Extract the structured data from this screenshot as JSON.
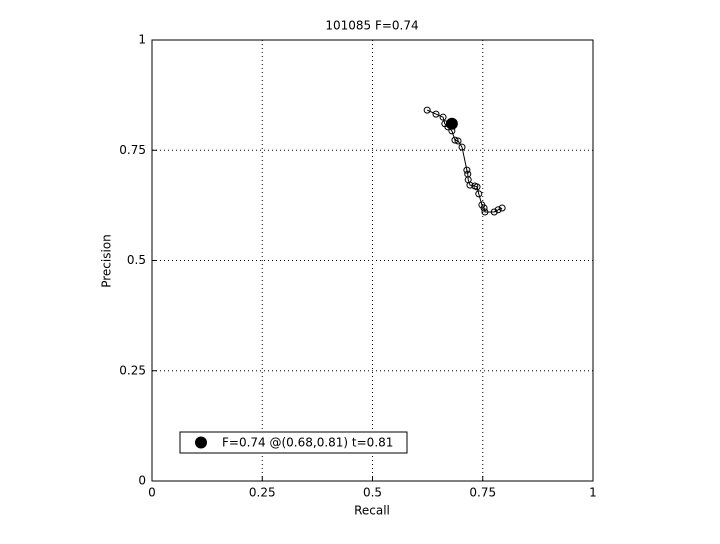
{
  "chart_data": {
    "type": "line",
    "title": "101085 F=0.74",
    "xlabel": "Recall",
    "ylabel": "Precision",
    "xlim": [
      0,
      1
    ],
    "ylim": [
      0,
      1
    ],
    "xticks": [
      0,
      0.25,
      0.5,
      0.75,
      1
    ],
    "yticks": [
      0,
      0.25,
      0.5,
      0.75,
      1
    ],
    "grid": true,
    "series": [
      {
        "color": "#000000",
        "x": [
          0.624,
          0.644,
          0.66,
          0.664,
          0.671,
          0.68,
          0.687,
          0.694,
          0.703,
          0.714,
          0.716,
          0.717,
          0.721,
          0.732,
          0.737,
          0.741,
          0.748,
          0.753,
          0.755,
          0.776,
          0.785,
          0.794
        ],
        "values": [
          0.841,
          0.832,
          0.825,
          0.81,
          0.803,
          0.794,
          0.773,
          0.771,
          0.757,
          0.705,
          0.696,
          0.683,
          0.671,
          0.669,
          0.667,
          0.651,
          0.626,
          0.619,
          0.61,
          0.61,
          0.615,
          0.619
        ]
      }
    ],
    "best": {
      "name": "F=0.74 @(0.68,0.81) t=0.81",
      "color": "#000000",
      "x": 0.68,
      "y": 0.81
    },
    "legend": "lower left"
  }
}
